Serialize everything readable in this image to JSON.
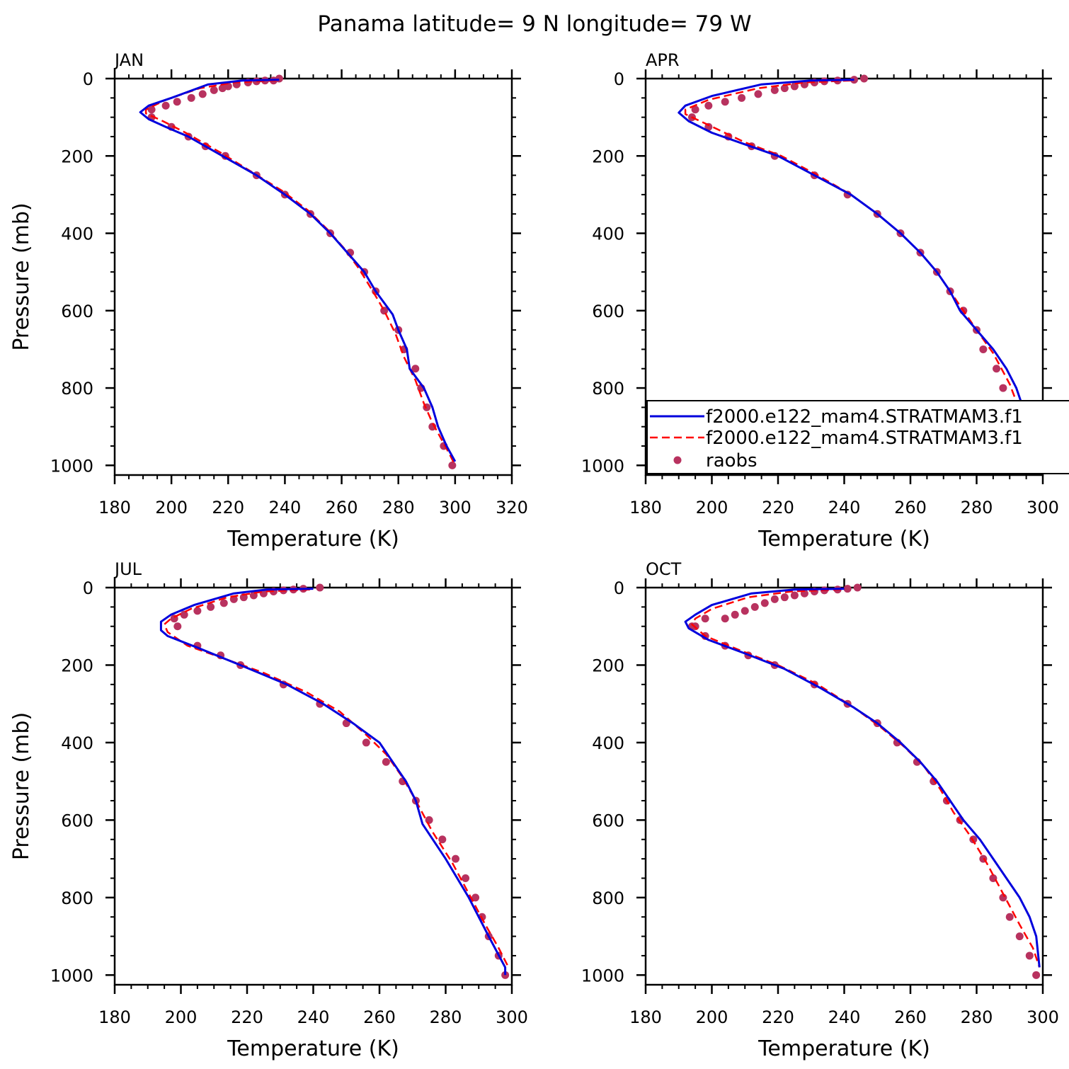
{
  "title": "Panama  latitude= 9 N longitude= 79 W",
  "colors": {
    "model_a": "#0000dd",
    "model_b": "#ff0000",
    "raobs": "#b8325f"
  },
  "legend": {
    "entries": [
      "f2000.e122_mam4.STRATMAM3.f1",
      "f2000.e122_mam4.STRATMAM3.f1",
      "raobs"
    ],
    "placement": "APR panel, lower right, clipped at right edge"
  },
  "chart_data": [
    {
      "type": "line",
      "panel": "JAN",
      "xlabel": "Temperature (K)",
      "ylabel": "Pressure (mb)",
      "xlim": [
        180,
        320
      ],
      "ylim": [
        1025,
        0
      ],
      "xticks": [
        180,
        200,
        220,
        240,
        260,
        280,
        300,
        320
      ],
      "yticks": [
        0,
        200,
        400,
        600,
        800,
        1000
      ],
      "series": [
        {
          "name": "f2000.e122_mam4.STRATMAM3.f1",
          "style": "solid",
          "x": [
            238,
            225,
            213,
            200,
            192,
            189,
            192,
            198,
            206,
            218,
            230,
            240,
            249,
            256,
            262,
            268,
            272,
            278,
            280,
            283,
            284,
            289,
            292,
            294,
            297,
            300
          ],
          "y": [
            3,
            5,
            15,
            50,
            70,
            87,
            105,
            125,
            150,
            200,
            250,
            300,
            350,
            400,
            450,
            500,
            550,
            610,
            650,
            700,
            750,
            800,
            850,
            900,
            950,
            990
          ]
        },
        {
          "name": "f2000.e122_mam4.STRATMAM3.f1",
          "style": "dashed",
          "x": [
            237,
            222,
            210,
            198,
            191,
            191,
            197,
            205,
            217,
            228,
            239,
            248,
            255,
            261,
            266,
            271,
            275,
            279,
            282,
            286,
            289,
            292,
            295,
            298,
            300
          ],
          "y": [
            5,
            10,
            25,
            55,
            80,
            90,
            110,
            140,
            190,
            240,
            290,
            340,
            390,
            440,
            490,
            550,
            600,
            660,
            720,
            780,
            840,
            890,
            930,
            970,
            1000
          ]
        }
      ],
      "points": {
        "name": "raobs",
        "x": [
          238,
          236,
          233,
          230,
          227,
          223,
          220,
          218,
          215,
          211,
          207,
          202,
          198,
          193,
          193,
          200,
          206,
          212,
          219,
          230,
          240,
          249,
          256,
          263,
          268,
          272,
          275,
          280,
          282,
          286,
          288,
          290,
          292,
          296,
          299
        ],
        "y": [
          0,
          5,
          5,
          7,
          10,
          15,
          20,
          25,
          30,
          40,
          50,
          60,
          70,
          80,
          100,
          125,
          150,
          175,
          200,
          250,
          300,
          350,
          400,
          450,
          500,
          550,
          600,
          650,
          700,
          750,
          800,
          850,
          900,
          950,
          1000
        ]
      }
    },
    {
      "type": "line",
      "panel": "APR",
      "xlabel": "Temperature (K)",
      "ylabel": "",
      "xlim": [
        180,
        300
      ],
      "ylim": [
        1025,
        0
      ],
      "xticks": [
        180,
        200,
        220,
        240,
        260,
        280,
        300
      ],
      "yticks": [
        0,
        200,
        400,
        600,
        800,
        1000
      ],
      "series": [
        {
          "name": "f2000.e122_mam4.STRATMAM3.f1",
          "style": "solid",
          "x": [
            243,
            230,
            215,
            200,
            192,
            190,
            193,
            200,
            210,
            220,
            231,
            242,
            250,
            257,
            263,
            268,
            272,
            275,
            280,
            285,
            289,
            292,
            296,
            299
          ],
          "y": [
            3,
            5,
            15,
            45,
            70,
            88,
            110,
            140,
            170,
            200,
            250,
            300,
            350,
            400,
            450,
            500,
            550,
            600,
            650,
            700,
            750,
            800,
            900,
            980
          ]
        },
        {
          "name": "f2000.e122_mam4.STRATMAM3.f1",
          "style": "dashed",
          "x": [
            242,
            228,
            214,
            199,
            192,
            192,
            199,
            210,
            221,
            232,
            242,
            250,
            257,
            263,
            268,
            272,
            276,
            280,
            285,
            290,
            294,
            297,
            300
          ],
          "y": [
            5,
            10,
            25,
            55,
            80,
            92,
            120,
            165,
            200,
            250,
            300,
            350,
            400,
            450,
            500,
            550,
            600,
            650,
            710,
            790,
            880,
            950,
            1000
          ]
        }
      ],
      "points": {
        "name": "raobs",
        "x": [
          246,
          243,
          238,
          234,
          231,
          228,
          225,
          222,
          219,
          214,
          209,
          204,
          199,
          195,
          194,
          199,
          205,
          212,
          219,
          231,
          241,
          250,
          257,
          263,
          268,
          272,
          276,
          280,
          282,
          286,
          288,
          291,
          293,
          296,
          300
        ],
        "y": [
          0,
          3,
          5,
          7,
          10,
          15,
          20,
          25,
          30,
          40,
          50,
          60,
          70,
          80,
          100,
          125,
          150,
          175,
          200,
          250,
          300,
          350,
          400,
          450,
          500,
          550,
          600,
          650,
          700,
          750,
          800,
          850,
          900,
          950,
          1000
        ]
      }
    },
    {
      "type": "line",
      "panel": "JUL",
      "xlabel": "Temperature (K)",
      "ylabel": "Pressure (mb)",
      "xlim": [
        180,
        300
      ],
      "ylim": [
        1025,
        0
      ],
      "xticks": [
        180,
        200,
        220,
        240,
        260,
        280,
        300
      ],
      "yticks": [
        0,
        200,
        400,
        600,
        800,
        1000
      ],
      "series": [
        {
          "name": "f2000.e122_mam4.STRATMAM3.f1",
          "style": "solid",
          "x": [
            240,
            226,
            216,
            204,
            197,
            194,
            194,
            196,
            205,
            218,
            232,
            243,
            252,
            260,
            264,
            268,
            271,
            273,
            280,
            287,
            293,
            298,
            298
          ],
          "y": [
            3,
            5,
            15,
            45,
            70,
            88,
            110,
            125,
            155,
            200,
            250,
            300,
            350,
            400,
            450,
            500,
            550,
            610,
            700,
            800,
            900,
            980,
            1000
          ]
        },
        {
          "name": "f2000.e122_mam4.STRATMAM3.f1",
          "style": "dashed",
          "x": [
            239,
            225,
            214,
            203,
            197,
            195,
            196,
            202,
            212,
            225,
            238,
            248,
            256,
            262,
            267,
            271,
            276,
            282,
            287,
            292,
            296,
            299
          ],
          "y": [
            5,
            10,
            25,
            55,
            80,
            95,
            115,
            150,
            180,
            220,
            270,
            320,
            380,
            430,
            490,
            550,
            630,
            710,
            790,
            870,
            930,
            980
          ]
        }
      ],
      "points": {
        "name": "raobs",
        "x": [
          242,
          237,
          234,
          231,
          228,
          225,
          222,
          219,
          216,
          213,
          209,
          205,
          201,
          198,
          199,
          205,
          212,
          218,
          231,
          242,
          250,
          256,
          262,
          267,
          271,
          275,
          279,
          283,
          286,
          289,
          291,
          293,
          296,
          298
        ],
        "y": [
          0,
          3,
          5,
          7,
          10,
          15,
          20,
          25,
          30,
          40,
          50,
          60,
          70,
          80,
          100,
          150,
          175,
          200,
          250,
          300,
          350,
          400,
          450,
          500,
          550,
          600,
          650,
          700,
          750,
          800,
          850,
          900,
          950,
          1000
        ]
      }
    },
    {
      "type": "line",
      "panel": "OCT",
      "xlabel": "Temperature (K)",
      "ylabel": "",
      "xlim": [
        180,
        300
      ],
      "ylim": [
        1025,
        0
      ],
      "xticks": [
        180,
        200,
        220,
        240,
        260,
        280,
        300
      ],
      "yticks": [
        0,
        200,
        400,
        600,
        800,
        1000
      ],
      "series": [
        {
          "name": "f2000.e122_mam4.STRATMAM3.f1",
          "style": "solid",
          "x": [
            240,
            225,
            212,
            200,
            195,
            192,
            193,
            199,
            210,
            222,
            233,
            243,
            250,
            257,
            263,
            268,
            272,
            276,
            281,
            285,
            289,
            293,
            296,
            298,
            299
          ],
          "y": [
            3,
            5,
            15,
            45,
            70,
            88,
            105,
            135,
            170,
            210,
            260,
            310,
            350,
            400,
            450,
            500,
            550,
            600,
            650,
            700,
            750,
            800,
            850,
            900,
            980
          ]
        },
        {
          "name": "f2000.e122_mam4.STRATMAM3.f1",
          "style": "dashed",
          "x": [
            239,
            224,
            211,
            200,
            195,
            194,
            198,
            208,
            220,
            232,
            243,
            251,
            258,
            264,
            269,
            273,
            278,
            283,
            288,
            293,
            297,
            299
          ],
          "y": [
            5,
            10,
            25,
            55,
            80,
            95,
            125,
            160,
            200,
            250,
            310,
            360,
            410,
            460,
            520,
            580,
            640,
            710,
            790,
            870,
            930,
            980
          ]
        }
      ],
      "points": {
        "name": "raobs",
        "x": [
          244,
          241,
          238,
          234,
          231,
          228,
          225,
          222,
          219,
          216,
          213,
          210,
          207,
          204,
          198,
          195,
          194,
          198,
          204,
          211,
          219,
          231,
          241,
          250,
          256,
          262,
          267,
          271,
          275,
          279,
          282,
          285,
          288,
          290,
          293,
          296,
          298
        ],
        "y": [
          0,
          3,
          5,
          7,
          10,
          15,
          20,
          25,
          30,
          40,
          50,
          60,
          70,
          80,
          80,
          100,
          100,
          125,
          150,
          175,
          200,
          250,
          300,
          350,
          400,
          450,
          500,
          550,
          600,
          650,
          700,
          750,
          800,
          850,
          900,
          950,
          1000
        ]
      }
    }
  ]
}
